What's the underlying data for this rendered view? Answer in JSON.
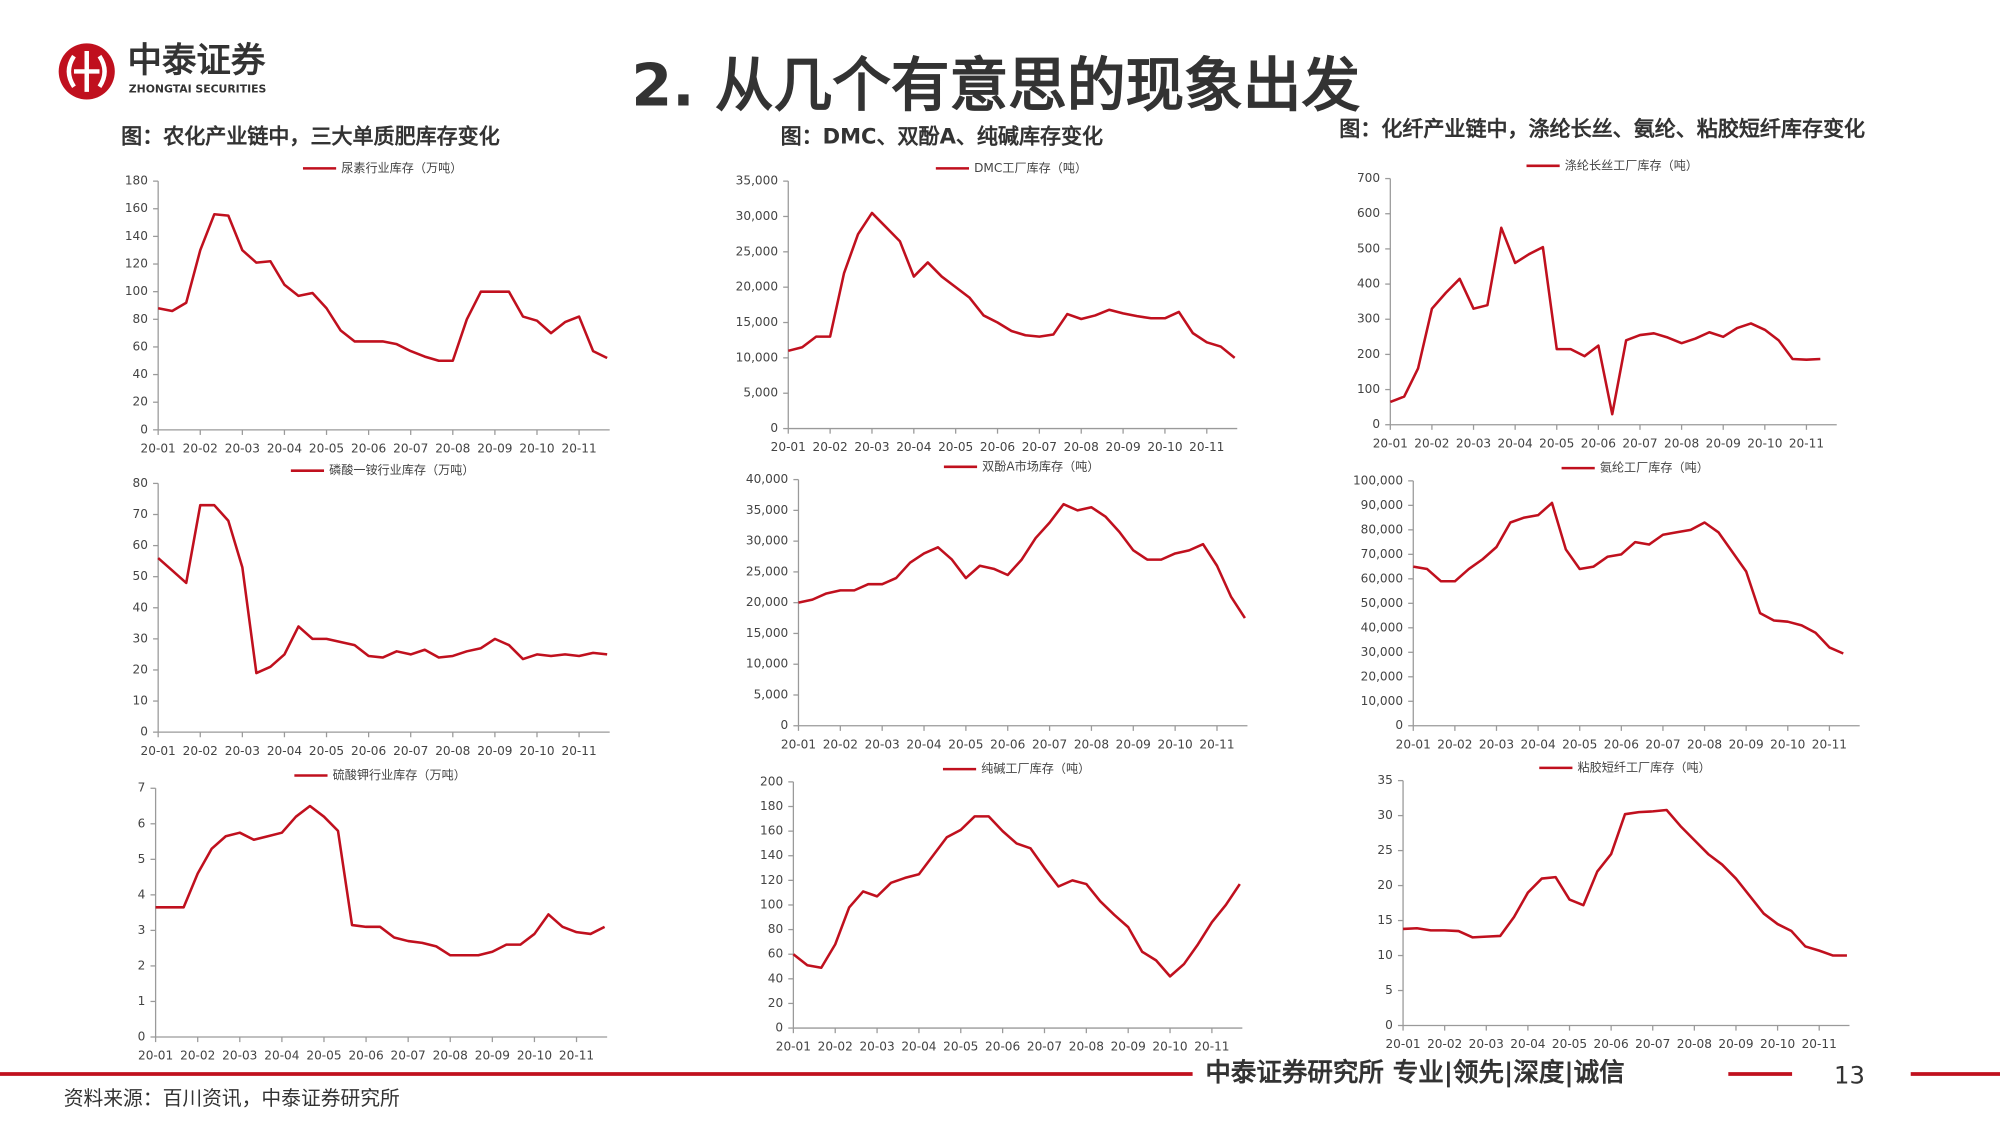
{
  "header": {
    "logo_name": "中泰证券",
    "logo_sub": "ZHONGTAI SECURITIES",
    "title": "2. 从几个有意思的现象出发"
  },
  "captions": [
    "图：农化产业链中，三大单质肥库存变化",
    "图：DMC、双酚A、纯碱库存变化",
    "图：化纤产业链中，涤纶长丝、氨纶、粘胶短纤库存变化"
  ],
  "chart_data": [
    {
      "type": "line",
      "legend": "top",
      "categories": [
        "20-01",
        null,
        null,
        "20-02",
        null,
        null,
        "20-03",
        null,
        null,
        "20-04",
        null,
        null,
        "20-05",
        null,
        null,
        "20-06",
        null,
        null,
        "20-07",
        null,
        null,
        "20-08",
        null,
        null,
        "20-09",
        null,
        null,
        "20-10",
        null,
        null,
        "20-11",
        null,
        null
      ],
      "series": [
        {
          "name": "尿素行业库存（万吨）",
          "color": "#c0101e",
          "values": [
            88,
            86,
            92,
            130,
            156,
            155,
            130,
            121,
            122,
            105,
            97,
            99,
            88,
            72,
            64,
            64,
            64,
            62,
            57,
            53,
            50,
            50,
            80,
            100,
            100,
            100,
            82,
            79,
            70,
            78,
            82,
            57,
            52
          ]
        }
      ],
      "ylim": [
        0,
        180
      ],
      "yticks": [
        0,
        20,
        40,
        60,
        80,
        100,
        120,
        140,
        160,
        180
      ]
    },
    {
      "type": "line",
      "legend": "top",
      "categories": [
        "20-01",
        null,
        null,
        "20-02",
        null,
        null,
        "20-03",
        null,
        null,
        "20-04",
        null,
        null,
        "20-05",
        null,
        null,
        "20-06",
        null,
        null,
        "20-07",
        null,
        null,
        "20-08",
        null,
        null,
        "20-09",
        null,
        null,
        "20-10",
        null,
        null,
        "20-11",
        null,
        null
      ],
      "series": [
        {
          "name": "磷酸一铵行业库存（万吨）",
          "color": "#c0101e",
          "values": [
            56,
            52,
            48,
            73,
            73,
            68,
            53,
            19,
            21,
            25,
            34,
            30,
            30,
            29,
            28,
            24.5,
            24,
            26,
            25,
            26.5,
            24,
            24.5,
            26,
            27,
            30,
            28,
            23.5,
            25,
            24.5,
            25,
            24.5,
            25.5,
            25
          ]
        }
      ],
      "ylim": [
        0,
        80
      ],
      "yticks": [
        0,
        10,
        20,
        30,
        40,
        50,
        60,
        70,
        80
      ]
    },
    {
      "type": "line",
      "legend": "top",
      "categories": [
        "20-01",
        null,
        null,
        "20-02",
        null,
        null,
        "20-03",
        null,
        null,
        "20-04",
        null,
        null,
        "20-05",
        null,
        null,
        "20-06",
        null,
        null,
        "20-07",
        null,
        null,
        "20-08",
        null,
        null,
        "20-09",
        null,
        null,
        "20-10",
        null,
        null,
        "20-11",
        null,
        null
      ],
      "series": [
        {
          "name": "硫酸钾行业库存（万吨）",
          "color": "#c0101e",
          "values": [
            3.65,
            3.65,
            3.65,
            4.6,
            5.3,
            5.65,
            5.75,
            5.55,
            5.65,
            5.75,
            6.2,
            6.5,
            6.2,
            5.8,
            3.15,
            3.1,
            3.1,
            2.8,
            2.7,
            2.65,
            2.55,
            2.3,
            2.3,
            2.3,
            2.4,
            2.6,
            2.6,
            2.9,
            3.45,
            3.1,
            2.95,
            2.9,
            3.1
          ]
        }
      ],
      "ylim": [
        0,
        7
      ],
      "yticks": [
        0,
        1,
        2,
        3,
        4,
        5,
        6,
        7
      ]
    },
    {
      "type": "line",
      "legend": "top",
      "categories": [
        "20-01",
        null,
        null,
        "20-02",
        null,
        null,
        "20-03",
        null,
        null,
        "20-04",
        null,
        null,
        "20-05",
        null,
        null,
        "20-06",
        null,
        null,
        "20-07",
        null,
        null,
        "20-08",
        null,
        null,
        "20-09",
        null,
        null,
        "20-10",
        null,
        null,
        "20-11",
        null,
        null
      ],
      "series": [
        {
          "name": "DMC工厂库存（吨）",
          "color": "#c0101e",
          "values": [
            11000,
            11500,
            13000,
            13000,
            22000,
            27500,
            30500,
            28500,
            26500,
            21500,
            23500,
            21500,
            20000,
            18500,
            16000,
            15000,
            13800,
            13200,
            13000,
            13300,
            16200,
            15500,
            16000,
            16800,
            16300,
            15900,
            15600,
            15600,
            16500,
            13500,
            12200,
            11600,
            10000
          ]
        }
      ],
      "ylim": [
        0,
        35000
      ],
      "yticks": [
        0,
        {
          "value": 5000,
          "label": "5,000"
        },
        {
          "value": 10000,
          "label": "10,000"
        },
        {
          "value": 15000,
          "label": "15,000"
        },
        {
          "value": 20000,
          "label": "20,000"
        },
        {
          "value": 25000,
          "label": "25,000"
        },
        {
          "value": 30000,
          "label": "30,000"
        },
        {
          "value": 35000,
          "label": "35,000"
        }
      ]
    },
    {
      "type": "line",
      "legend": "top",
      "categories": [
        "20-01",
        null,
        null,
        "20-02",
        null,
        null,
        "20-03",
        null,
        null,
        "20-04",
        null,
        null,
        "20-05",
        null,
        null,
        "20-06",
        null,
        null,
        "20-07",
        null,
        null,
        "20-08",
        null,
        null,
        "20-09",
        null,
        null,
        "20-10",
        null,
        null,
        "20-11",
        null,
        null
      ],
      "series": [
        {
          "name": "双酚A市场库存（吨）",
          "color": "#c0101e",
          "values": [
            20000,
            20500,
            21500,
            22000,
            22000,
            23000,
            23000,
            24000,
            26500,
            28000,
            29000,
            27000,
            24000,
            26000,
            25500,
            24500,
            27000,
            30500,
            33000,
            36000,
            35000,
            35500,
            34000,
            31500,
            28500,
            27000,
            27000,
            28000,
            28500,
            29500,
            26000,
            21000,
            17500
          ]
        }
      ],
      "ylim": [
        0,
        40000
      ],
      "yticks": [
        0,
        {
          "value": 5000,
          "label": "5,000"
        },
        {
          "value": 10000,
          "label": "10,000"
        },
        {
          "value": 15000,
          "label": "15,000"
        },
        {
          "value": 20000,
          "label": "20,000"
        },
        {
          "value": 25000,
          "label": "25,000"
        },
        {
          "value": 30000,
          "label": "30,000"
        },
        {
          "value": 35000,
          "label": "35,000"
        },
        {
          "value": 40000,
          "label": "40,000"
        }
      ]
    },
    {
      "type": "line",
      "legend": "top",
      "categories": [
        "20-01",
        null,
        null,
        "20-02",
        null,
        null,
        "20-03",
        null,
        null,
        "20-04",
        null,
        null,
        "20-05",
        null,
        null,
        "20-06",
        null,
        null,
        "20-07",
        null,
        null,
        "20-08",
        null,
        null,
        "20-09",
        null,
        null,
        "20-10",
        null,
        null,
        "20-11",
        null,
        null
      ],
      "series": [
        {
          "name": "纯碱工厂库存（吨）",
          "color": "#c0101e",
          "values": [
            60,
            51,
            49,
            68,
            98,
            111,
            107,
            118,
            122,
            125,
            140,
            155,
            161,
            172,
            172,
            160,
            150,
            146,
            130,
            115,
            120,
            117,
            103,
            92,
            82,
            62,
            55,
            42,
            52,
            68,
            86,
            100,
            117
          ]
        }
      ],
      "ylim": [
        0,
        200
      ],
      "yticks": [
        0,
        20,
        40,
        60,
        80,
        100,
        120,
        140,
        160,
        180,
        200
      ]
    },
    {
      "type": "line",
      "legend": "top",
      "categories": [
        "20-01",
        null,
        null,
        "20-02",
        null,
        null,
        "20-03",
        null,
        null,
        "20-04",
        null,
        null,
        "20-05",
        null,
        null,
        "20-06",
        null,
        null,
        "20-07",
        null,
        null,
        "20-08",
        null,
        null,
        "20-09",
        null,
        null,
        "20-10",
        null,
        null,
        "20-11",
        null,
        null
      ],
      "series": [
        {
          "name": "涤纶长丝工厂库存（吨）",
          "color": "#c0101e",
          "values": [
            65,
            80,
            160,
            330,
            375,
            415,
            330,
            340,
            560,
            460,
            485,
            505,
            215,
            215,
            195,
            225,
            30,
            240,
            255,
            260,
            248,
            232,
            245,
            263,
            250,
            275,
            288,
            270,
            240,
            187,
            185,
            187,
            null
          ]
        }
      ],
      "ylim": [
        0,
        700
      ],
      "yticks": [
        0,
        100,
        200,
        300,
        400,
        500,
        600,
        700
      ]
    },
    {
      "type": "line",
      "legend": "top",
      "categories": [
        "20-01",
        null,
        null,
        "20-02",
        null,
        null,
        "20-03",
        null,
        null,
        "20-04",
        null,
        null,
        "20-05",
        null,
        null,
        "20-06",
        null,
        null,
        "20-07",
        null,
        null,
        "20-08",
        null,
        null,
        "20-09",
        null,
        null,
        "20-10",
        null,
        null,
        "20-11",
        null,
        null
      ],
      "series": [
        {
          "name": "氨纶工厂库存（吨）",
          "color": "#c0101e",
          "values": [
            65000,
            64000,
            59000,
            59000,
            64000,
            68000,
            73000,
            83000,
            85000,
            86000,
            91000,
            72000,
            64000,
            65000,
            69000,
            70000,
            75000,
            74000,
            78000,
            79000,
            80000,
            83000,
            79000,
            71000,
            63000,
            46000,
            43000,
            42500,
            41000,
            38000,
            32000,
            29500,
            null
          ]
        }
      ],
      "ylim": [
        0,
        100000
      ],
      "yticks": [
        0,
        {
          "value": 10000,
          "label": "10,000"
        },
        {
          "value": 20000,
          "label": "20,000"
        },
        {
          "value": 30000,
          "label": "30,000"
        },
        {
          "value": 40000,
          "label": "40,000"
        },
        {
          "value": 50000,
          "label": "50,000"
        },
        {
          "value": 60000,
          "label": "60,000"
        },
        {
          "value": 70000,
          "label": "70,000"
        },
        {
          "value": 80000,
          "label": "80,000"
        },
        {
          "value": 90000,
          "label": "90,000"
        },
        {
          "value": 100000,
          "label": "100,000"
        }
      ]
    },
    {
      "type": "line",
      "legend": "top",
      "categories": [
        "20-01",
        null,
        null,
        "20-02",
        null,
        null,
        "20-03",
        null,
        null,
        "20-04",
        null,
        null,
        "20-05",
        null,
        null,
        "20-06",
        null,
        null,
        "20-07",
        null,
        null,
        "20-08",
        null,
        null,
        "20-09",
        null,
        null,
        "20-10",
        null,
        null,
        "20-11",
        null,
        null
      ],
      "series": [
        {
          "name": "粘胶短纤工厂库存（吨）",
          "color": "#c0101e",
          "values": [
            13.8,
            13.9,
            13.6,
            13.6,
            13.5,
            12.6,
            12.7,
            12.8,
            15.5,
            19,
            21,
            21.2,
            18,
            17.2,
            22,
            24.5,
            30.2,
            30.5,
            30.6,
            30.8,
            28.5,
            26.5,
            24.5,
            23,
            21,
            18.5,
            16,
            14.5,
            13.5,
            11.3,
            10.7,
            10,
            10
          ]
        }
      ],
      "ylim": [
        0,
        35
      ],
      "yticks": [
        0,
        5,
        10,
        15,
        20,
        25,
        30,
        35
      ]
    }
  ],
  "footer": {
    "slogan": "中泰证券研究所 专业|领先|深度|诚信",
    "page": "13",
    "source": "资料来源：百川资讯，中泰证券研究所"
  }
}
